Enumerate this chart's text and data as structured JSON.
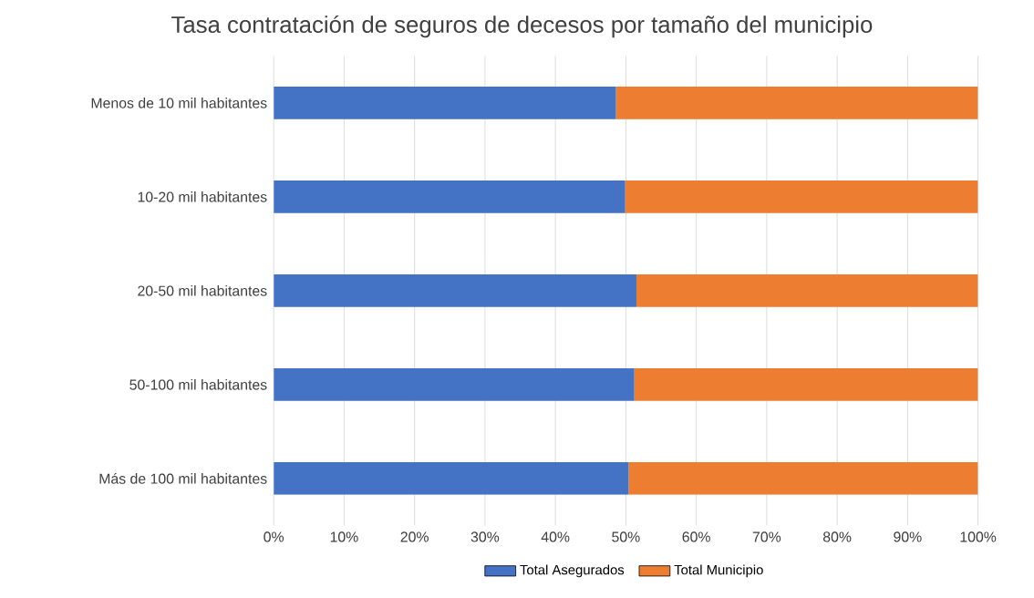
{
  "chart_data": {
    "type": "bar",
    "orientation": "horizontal",
    "stacked": true,
    "title": "Tasa contratación de seguros de decesos por tamaño del municipio",
    "categories": [
      "Menos de 10 mil habitantes",
      "10-20 mil habitantes",
      "20-50 mil habitantes",
      "50-100 mil habitantes",
      "Más de 100 mil habitantes"
    ],
    "series": [
      {
        "name": "Total Asegurados",
        "color": "#4472c4",
        "values": [
          48.6,
          49.9,
          51.5,
          51.2,
          50.4
        ]
      },
      {
        "name": "Total Municipio",
        "color": "#ed7d31",
        "values": [
          51.4,
          50.1,
          48.5,
          48.8,
          49.6
        ]
      }
    ],
    "xlim": [
      0,
      100
    ],
    "xticks": [
      {
        "value": 0,
        "label": "0%"
      },
      {
        "value": 10,
        "label": "10%"
      },
      {
        "value": 20,
        "label": "20%"
      },
      {
        "value": 30,
        "label": "30%"
      },
      {
        "value": 40,
        "label": "40%"
      },
      {
        "value": 50,
        "label": "50%"
      },
      {
        "value": 60,
        "label": "60%"
      },
      {
        "value": 70,
        "label": "70%"
      },
      {
        "value": 80,
        "label": "80%"
      },
      {
        "value": 90,
        "label": "90%"
      },
      {
        "value": 100,
        "label": "100%"
      }
    ],
    "grid": "x",
    "legend": "bottom"
  }
}
